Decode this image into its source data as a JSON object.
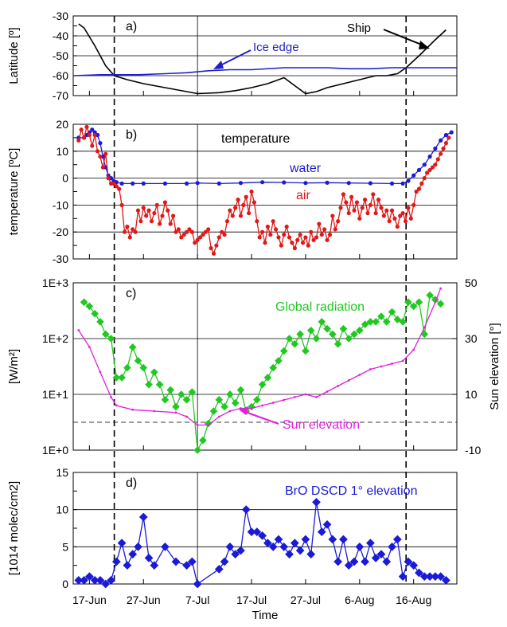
{
  "x_axis": {
    "title": "Time",
    "ticks": [
      {
        "day": 0,
        "label": "17-Jun"
      },
      {
        "day": 10,
        "label": "27-Jun"
      },
      {
        "day": 20,
        "label": "7-Jul"
      },
      {
        "day": 30,
        "label": "17-Jul"
      },
      {
        "day": 40,
        "label": "27-Jul"
      },
      {
        "day": 50,
        "label": "6-Aug"
      },
      {
        "day": 60,
        "label": "16-Aug"
      }
    ],
    "xlim": [
      -3,
      68
    ],
    "vlines_dashed": [
      4.6,
      58.6
    ],
    "vline_solid": 20
  },
  "chart_data": [
    {
      "panel": "a)",
      "type": "line",
      "ylabel": "Latitude [º]",
      "ylim": [
        -70,
        -30
      ],
      "yticks": [
        "-30",
        "-40",
        "-50",
        "-60",
        "-70"
      ],
      "annotations": [
        "Ice edge",
        "Ship"
      ],
      "series": [
        {
          "name": "Ship",
          "color": "#000000",
          "x": [
            -2,
            -1,
            1,
            3,
            4.6,
            7,
            10,
            14,
            18,
            20,
            24,
            27,
            30,
            33,
            36,
            38,
            40,
            42,
            44,
            47,
            50,
            53,
            55,
            57,
            58.6,
            61,
            64,
            66
          ],
          "y": [
            -34,
            -36,
            -45,
            -55,
            -60,
            -62,
            -64,
            -66,
            -68,
            -69,
            -68.5,
            -67.5,
            -66,
            -64,
            -61,
            -65,
            -69,
            -68,
            -66,
            -64,
            -62,
            -60,
            -60,
            -59,
            -56,
            -50,
            -42,
            -37
          ]
        },
        {
          "name": "Ice edge",
          "color": "#1f1fc8",
          "x": [
            -3,
            2,
            5,
            9,
            14,
            18,
            22,
            26,
            30,
            36,
            40,
            44,
            48,
            52,
            56,
            60,
            64,
            68
          ],
          "y": [
            -60,
            -59.5,
            -59.5,
            -59.5,
            -59,
            -58.5,
            -57.5,
            -57,
            -57,
            -56,
            -56,
            -56,
            -56.5,
            -56.5,
            -56,
            -56,
            -56,
            -56
          ]
        }
      ]
    },
    {
      "panel": "b)",
      "type": "line",
      "ylabel": "temperature [ºC]",
      "ylim": [
        -30,
        20
      ],
      "yticks": [
        "20",
        "10",
        "0",
        "-10",
        "-20",
        "-30"
      ],
      "title": "temperature",
      "annotations": [
        "water",
        "air"
      ],
      "series": [
        {
          "name": "water",
          "color": "#1a1ad8",
          "x": [
            -2,
            -1,
            -0.5,
            0,
            0.5,
            1,
            1.5,
            2,
            2.5,
            3,
            3.5,
            4,
            4.5,
            5,
            6,
            8,
            10,
            14,
            18,
            20,
            24,
            28,
            32,
            36,
            40,
            44,
            48,
            52,
            56,
            58,
            59,
            60,
            61,
            62,
            63,
            64,
            65,
            66,
            67
          ],
          "y": [
            15,
            15,
            16,
            17,
            18,
            17,
            16,
            13,
            8,
            4,
            1,
            0,
            -1,
            -1.5,
            -2,
            -2,
            -2,
            -2,
            -2,
            -1.8,
            -2,
            -1.8,
            -1.5,
            -1.6,
            -1.8,
            -1.7,
            -1.8,
            -1.9,
            -2,
            -2,
            -1,
            1,
            3,
            5,
            8,
            11,
            14,
            16,
            17
          ]
        },
        {
          "name": "air",
          "color": "#e01818",
          "x": [
            -2,
            -1.5,
            -1,
            -0.5,
            0,
            0.5,
            1,
            1.5,
            2,
            2.5,
            3,
            3.5,
            4,
            4.5,
            5,
            5.5,
            6,
            6.5,
            7,
            7.5,
            8,
            8.5,
            9,
            9.5,
            10,
            10.5,
            11,
            11.5,
            12,
            12.5,
            13,
            13.5,
            14,
            14.5,
            15,
            15.5,
            16,
            16.5,
            17,
            17.5,
            18,
            18.5,
            19,
            19.5,
            20,
            20.5,
            21,
            21.5,
            22,
            22.5,
            23,
            23.5,
            24,
            24.5,
            25,
            25.5,
            26,
            26.5,
            27,
            27.5,
            28,
            28.5,
            29,
            29.5,
            30,
            30.5,
            31,
            31.5,
            32,
            32.5,
            33,
            33.5,
            34,
            34.5,
            35,
            35.5,
            36,
            36.5,
            37,
            37.5,
            38,
            38.5,
            39,
            39.5,
            40,
            40.5,
            41,
            41.5,
            42,
            42.5,
            43,
            43.5,
            44,
            44.5,
            45,
            45.5,
            46,
            46.5,
            47,
            47.5,
            48,
            48.5,
            49,
            49.5,
            50,
            50.5,
            51,
            51.5,
            52,
            52.5,
            53,
            53.5,
            54,
            54.5,
            55,
            55.5,
            56,
            56.5,
            57,
            57.5,
            58,
            58.5,
            59,
            59.5,
            60,
            60.5,
            61,
            61.5,
            62,
            62.5,
            63,
            63.5,
            64,
            64.5,
            65,
            65.5,
            66,
            66.5
          ],
          "y": [
            14,
            18,
            15,
            19,
            16,
            12,
            16,
            10,
            8,
            4,
            9,
            0,
            -2,
            -2,
            -3,
            -4,
            -10,
            -20,
            -18,
            -22,
            -19,
            -20,
            -12,
            -16,
            -11,
            -14,
            -12,
            -16,
            -13,
            -10,
            -17,
            -14,
            -9,
            -12,
            -17,
            -14,
            -20,
            -19,
            -22,
            -21,
            -20,
            -19,
            -20,
            -24,
            -23,
            -22,
            -21,
            -20,
            -19,
            -26,
            -28,
            -25,
            -22,
            -20,
            -21,
            -16,
            -12,
            -14,
            -11,
            -8,
            -14,
            -10,
            -7,
            -13,
            -5,
            -9,
            -16,
            -22,
            -20,
            -24,
            -18,
            -21,
            -16,
            -19,
            -22,
            -25,
            -21,
            -18,
            -22,
            -24,
            -26,
            -23,
            -21,
            -24,
            -22,
            -25,
            -20,
            -23,
            -22,
            -17,
            -21,
            -19,
            -23,
            -21,
            -14,
            -19,
            -16,
            -11,
            -6,
            -9,
            -13,
            -7,
            -12,
            -9,
            -15,
            -11,
            -8,
            -13,
            -10,
            -6,
            -13,
            -8,
            -11,
            -14,
            -12,
            -16,
            -12,
            -15,
            -18,
            -14,
            -13,
            -16,
            -11,
            -15,
            -10,
            -5,
            -4,
            -2,
            0,
            2,
            3,
            4,
            5,
            7,
            9,
            11,
            13,
            15
          ]
        }
      ]
    },
    {
      "panel": "c)",
      "type": "line",
      "ylabel": "[W/m²]",
      "yscale": "log",
      "ylim": [
        1,
        1000
      ],
      "yticks": [
        "1E+0",
        "1E+1",
        "1E+2",
        "1E+3"
      ],
      "y2label": "Sun elevation [°]",
      "y2lim": [
        -10,
        50
      ],
      "y2ticks": [
        "-10",
        "10",
        "30",
        "50"
      ],
      "hline_dashed_y2": 0,
      "annotations": [
        "Global radiation",
        "Sun elevation"
      ],
      "series": [
        {
          "name": "Global radiation",
          "color": "#22c822",
          "axis": "left",
          "x": [
            -1,
            0,
            1,
            2,
            3,
            4,
            5,
            6,
            7,
            8,
            9,
            10,
            11,
            12,
            13,
            14,
            15,
            16,
            17,
            18,
            19,
            20,
            21,
            22,
            23,
            24,
            25,
            26,
            27,
            28,
            29,
            30,
            31,
            32,
            33,
            34,
            35,
            36,
            37,
            38,
            39,
            40,
            41,
            42,
            43,
            44,
            45,
            46,
            47,
            48,
            49,
            50,
            51,
            52,
            53,
            54,
            55,
            56,
            57,
            58,
            59,
            60,
            61,
            62,
            63,
            64,
            65
          ],
          "y": [
            450,
            380,
            280,
            200,
            120,
            100,
            20,
            20,
            30,
            70,
            40,
            30,
            15,
            25,
            15,
            8,
            12,
            6,
            10,
            8,
            11,
            1.0,
            1.5,
            3,
            5,
            8,
            6,
            10,
            7,
            12,
            5,
            6,
            8,
            15,
            20,
            30,
            40,
            60,
            100,
            80,
            120,
            60,
            140,
            100,
            200,
            150,
            120,
            80,
            150,
            100,
            120,
            140,
            180,
            200,
            200,
            250,
            200,
            300,
            220,
            200,
            450,
            380,
            450,
            120,
            600,
            500,
            420
          ]
        },
        {
          "name": "Sun elevation",
          "color": "#e020e0",
          "axis": "right",
          "x": [
            -2,
            0,
            2,
            4,
            5,
            8,
            12,
            16,
            18,
            20,
            22,
            24,
            26,
            28,
            30,
            32,
            34,
            36,
            38,
            40,
            42,
            44,
            46,
            48,
            50,
            52,
            54,
            56,
            58,
            60,
            62,
            64,
            65
          ],
          "y": [
            33,
            27,
            18,
            9,
            6,
            4.5,
            4,
            3.5,
            2,
            -1,
            -1,
            2,
            4,
            5,
            5,
            6,
            7,
            8,
            9,
            10,
            9,
            11,
            13,
            15,
            17,
            19,
            20,
            21,
            22,
            26,
            34,
            43,
            48
          ]
        }
      ]
    },
    {
      "panel": "d)",
      "type": "line",
      "ylabel": "[1014 molec/cm2]",
      "ylim": [
        0,
        15
      ],
      "yticks": [
        "0",
        "5",
        "10",
        "15"
      ],
      "title": "BrO DSCD 1° elevation",
      "series": [
        {
          "name": "BrO DSCD 1° elevation",
          "color": "#1a1ad8",
          "x": [
            -2,
            -1,
            0,
            1,
            2,
            3,
            4,
            5,
            6,
            7,
            8,
            9,
            10,
            11,
            12,
            14,
            16,
            18,
            19,
            20,
            24,
            25,
            26,
            27,
            28,
            29,
            30,
            31,
            32,
            33,
            34,
            35,
            36,
            37,
            38,
            39,
            40,
            41,
            42,
            43,
            44,
            45,
            46,
            47,
            48,
            49,
            50,
            51,
            52,
            53,
            54,
            55,
            56,
            57,
            58,
            59,
            60,
            61,
            62,
            63,
            64,
            65,
            66
          ],
          "y": [
            0.5,
            0.5,
            1.0,
            0.5,
            0.5,
            0,
            0.5,
            3,
            5.5,
            2.5,
            4,
            5,
            9,
            3.5,
            2.5,
            5,
            3,
            2.5,
            3,
            0,
            2,
            3,
            5,
            4,
            4.5,
            10,
            7,
            7,
            6.5,
            5.5,
            5,
            6,
            5,
            4,
            5.5,
            4.5,
            6,
            4,
            11,
            7,
            8,
            6,
            3,
            6,
            2.5,
            3,
            5,
            3,
            5.5,
            3.5,
            4,
            3,
            5,
            6,
            1,
            3,
            2.5,
            1.5,
            1,
            1,
            1,
            1,
            0.5
          ]
        }
      ]
    }
  ],
  "colors": {
    "axes": "#000000",
    "grid": "#000000"
  }
}
